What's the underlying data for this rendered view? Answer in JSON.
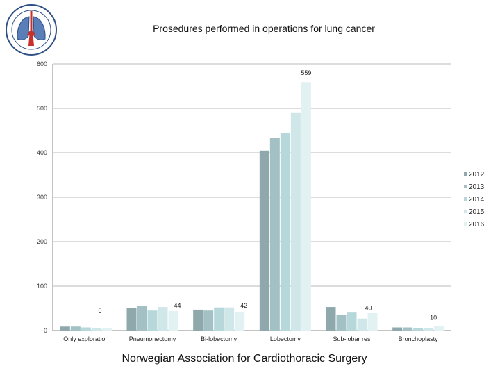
{
  "logo": {
    "icon": "lungs-seal-icon",
    "text": "Norwegian Association for Cardiothoracic Surgery seal"
  },
  "chart_data": {
    "type": "bar",
    "title": "Prosedures performed in operations for lung cancer",
    "xlabel": "",
    "ylabel": "",
    "ylim": [
      0,
      600
    ],
    "yticks": [
      0,
      100,
      200,
      300,
      400,
      500,
      600
    ],
    "categories": [
      "Only exploration",
      "Pneumonectomy",
      "Bi-lobectomy",
      "Lobectomy",
      "Sub-lobar res",
      "Bronchoplasty"
    ],
    "series": [
      {
        "name": "2012",
        "color": "#8fa8ab",
        "values": [
          9,
          50,
          47,
          405,
          53,
          7
        ]
      },
      {
        "name": "2013",
        "color": "#a3c1c4",
        "values": [
          9,
          56,
          45,
          433,
          36,
          7
        ]
      },
      {
        "name": "2014",
        "color": "#b7d8da",
        "values": [
          7,
          45,
          52,
          444,
          42,
          6
        ]
      },
      {
        "name": "2015",
        "color": "#cfe7e9",
        "values": [
          5,
          53,
          52,
          491,
          27,
          6
        ]
      },
      {
        "name": "2016",
        "color": "#e2f1f2",
        "values": [
          6,
          44,
          42,
          559,
          40,
          10
        ]
      }
    ],
    "data_labels": [
      {
        "category": "Only exploration",
        "series": "2016",
        "text": "6"
      },
      {
        "category": "Pneumonectomy",
        "series": "2016",
        "text": "44"
      },
      {
        "category": "Bi-lobectomy",
        "series": "2016",
        "text": "42"
      },
      {
        "category": "Lobectomy",
        "series": "2016",
        "text": "559"
      },
      {
        "category": "Sub-lobar res",
        "series": "2016",
        "text": "40"
      },
      {
        "category": "Bronchoplasty",
        "series": "2016",
        "text": "10"
      }
    ],
    "legend_position": "right",
    "grid": true
  },
  "footer": "Norwegian Association for Cardiothoracic Surgery"
}
